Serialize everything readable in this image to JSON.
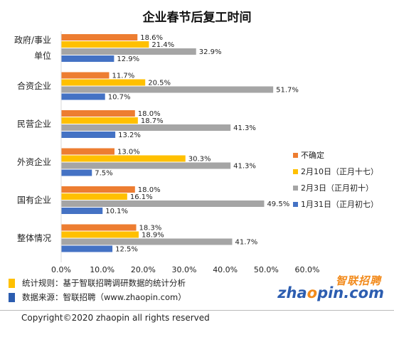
{
  "title": "企业春节后复工时间",
  "chart_data": {
    "type": "bar",
    "orientation": "horizontal",
    "categories": [
      "政府/事业\n单位",
      "合资企业",
      "民营企业",
      "外资企业",
      "国有企业",
      "整体情况"
    ],
    "series": [
      {
        "name": "不确定",
        "color": "#ed7d31",
        "values": [
          18.6,
          11.7,
          18.0,
          13.0,
          18.0,
          18.3
        ]
      },
      {
        "name": "2月10日（正月十七）",
        "color": "#ffc000",
        "values": [
          21.4,
          20.5,
          18.7,
          30.3,
          16.1,
          18.9
        ]
      },
      {
        "name": "2月3日（正月初十）",
        "color": "#a5a5a5",
        "values": [
          32.9,
          51.7,
          41.3,
          41.3,
          49.5,
          41.7
        ]
      },
      {
        "name": "1月31日（正月初七）",
        "color": "#4472c4",
        "values": [
          12.9,
          10.7,
          13.2,
          7.5,
          10.1,
          12.5
        ]
      }
    ],
    "value_labels": [
      [
        "18.6%",
        "11.7%",
        "18.0%",
        "13.0%",
        "18.0%",
        "18.3%"
      ],
      [
        "21.4%",
        "20.5%",
        "18.7%",
        "30.3%",
        "16.1%",
        "18.9%"
      ],
      [
        "32.9%",
        "51.7%",
        "41.3%",
        "41.3%",
        "49.5%",
        "41.7%"
      ],
      [
        "12.9%",
        "10.7%",
        "13.2%",
        "7.5%",
        "10.1%",
        "12.5%"
      ]
    ],
    "xlim": [
      0,
      60
    ],
    "xticks": [
      "0.0%",
      "10.0%",
      "20.0%",
      "30.0%",
      "40.0%",
      "50.0%",
      "60.0%"
    ],
    "grid": false,
    "legend_position": "right"
  },
  "notes": [
    {
      "text": "统计规则：基于智联招聘调研数据的统计分析",
      "color": "#ffc000"
    },
    {
      "text": "数据来源：智联招聘（www.zhaopin.com）",
      "color": "#2c5db0"
    }
  ],
  "logo": {
    "cn": "智联招聘",
    "en_prefix": "zha",
    "en_o": "o",
    "en_suffix": "pin.com"
  },
  "copyright": "Copyright©2020 zhaopin all rights reserved"
}
